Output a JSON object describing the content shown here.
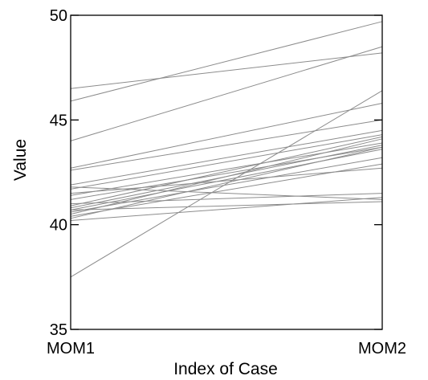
{
  "chart_data": {
    "type": "line",
    "title": "",
    "xlabel": "Index of Case",
    "ylabel": "Value",
    "categories": [
      "MOM1",
      "MOM2"
    ],
    "ylim": [
      35,
      50
    ],
    "yticks": [
      35,
      40,
      45,
      50
    ],
    "grid": false,
    "legend": "none",
    "line_color": "#8c8c8c",
    "series": [
      {
        "values": [
          46.5,
          48.2
        ]
      },
      {
        "values": [
          45.9,
          49.7
        ]
      },
      {
        "values": [
          44.0,
          48.5
        ]
      },
      {
        "values": [
          42.7,
          45.8
        ]
      },
      {
        "values": [
          42.6,
          45.0
        ]
      },
      {
        "values": [
          41.9,
          44.5
        ]
      },
      {
        "values": [
          41.8,
          41.2
        ]
      },
      {
        "values": [
          41.7,
          44.3
        ]
      },
      {
        "values": [
          41.5,
          42.7
        ]
      },
      {
        "values": [
          41.4,
          43.9
        ]
      },
      {
        "values": [
          41.2,
          43.7
        ]
      },
      {
        "values": [
          41.0,
          41.5
        ]
      },
      {
        "values": [
          40.9,
          44.2
        ]
      },
      {
        "values": [
          40.8,
          43.8
        ]
      },
      {
        "values": [
          40.7,
          43.6
        ]
      },
      {
        "values": [
          40.7,
          41.1
        ]
      },
      {
        "values": [
          40.6,
          43.2
        ]
      },
      {
        "values": [
          40.5,
          44.1
        ]
      },
      {
        "values": [
          40.4,
          42.9
        ]
      },
      {
        "values": [
          40.3,
          43.7
        ]
      },
      {
        "values": [
          40.2,
          41.3
        ]
      },
      {
        "values": [
          37.5,
          46.4
        ]
      }
    ]
  }
}
